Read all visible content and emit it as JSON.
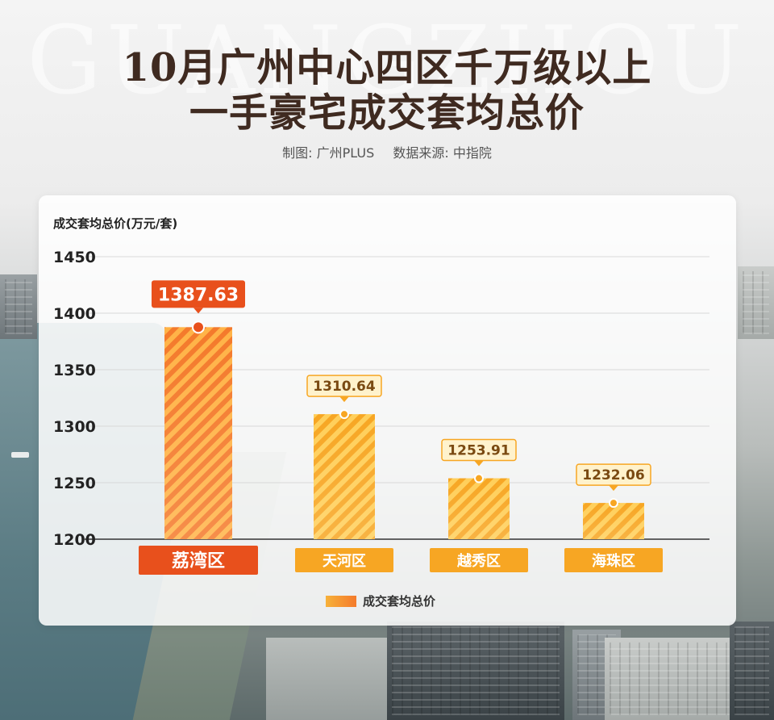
{
  "watermark": "GUANGZHOU",
  "title_line1": "10月广州中心四区千万级以上",
  "title_line2": "一手豪宅成交套均总价",
  "credit": {
    "maker": "制图: 广州PLUS",
    "source": "数据来源: 中指院"
  },
  "colors": {
    "highlight": "#e8501c",
    "normal": "#f7a623",
    "bar_light": "#ffd45a",
    "bar_dark": "#f47a2b"
  },
  "chart_data": {
    "type": "bar",
    "ylabel": "成交套均总价(万元/套)",
    "categories": [
      "荔湾区",
      "天河区",
      "越秀区",
      "海珠区"
    ],
    "values": [
      1387.63,
      1310.64,
      1253.91,
      1232.06
    ],
    "value_labels": [
      "1387.63",
      "1310.64",
      "1253.91",
      "1232.06"
    ],
    "yticks": [
      "1450",
      "1400",
      "1350",
      "1300",
      "1250",
      "1200"
    ],
    "ylim": [
      1200,
      1450
    ],
    "highlight_category": "荔湾区",
    "legend": [
      "成交套均总价"
    ],
    "grid": true
  }
}
